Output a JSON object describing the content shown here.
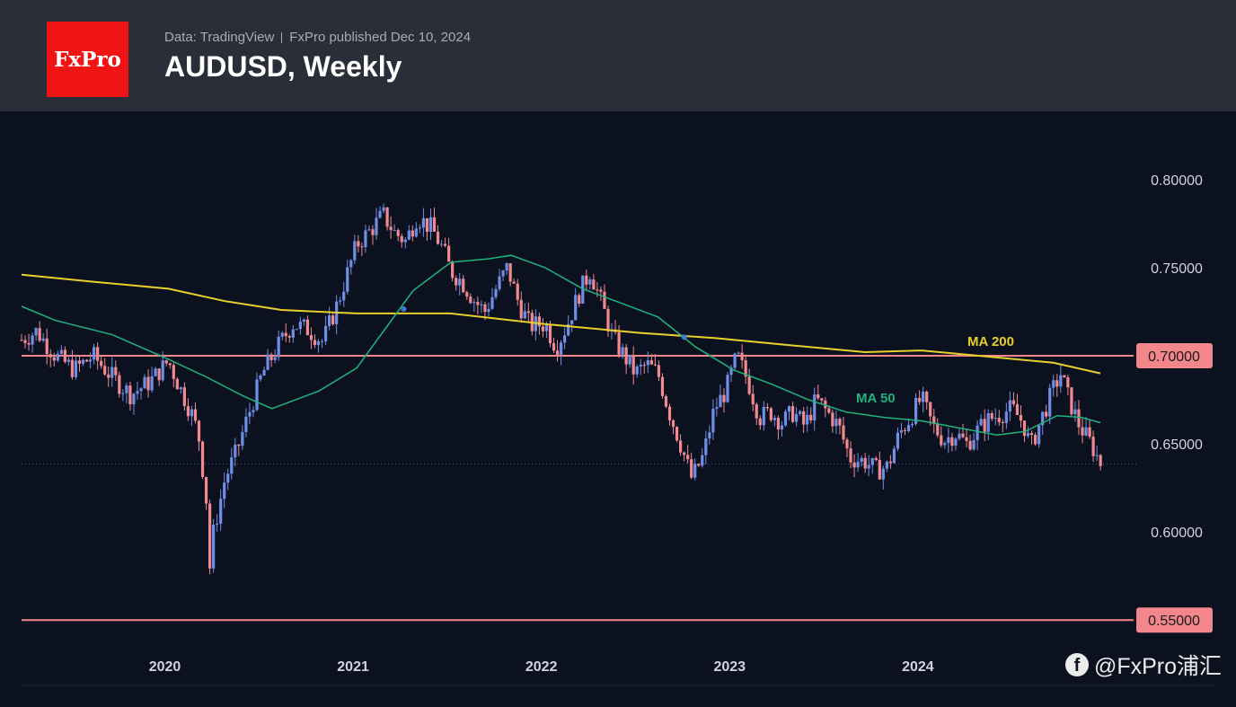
{
  "header": {
    "logo_text": "FxPro",
    "data_source": "Data: TradingView",
    "published": "FxPro published Dec 10, 2024",
    "title": "AUDUSD, Weekly"
  },
  "watermark": {
    "icon": "facebook-icon",
    "text": "@FxPro浦汇"
  },
  "colors": {
    "background": "#0c1120",
    "header": "#2a2e39",
    "up": "#6f8fe6",
    "down": "#f08a90",
    "ma50": "#1fb37d",
    "ma200": "#e8cf2c",
    "level": "#f2868a",
    "axis_text": "#d1d4dc"
  },
  "chart_data": {
    "type": "candlestick",
    "timeframe": "Weekly",
    "symbol": "AUDUSD",
    "x_range": [
      2019.22,
      2024.95
    ],
    "ylim": [
      0.545,
      0.805
    ],
    "y_ticks": [
      {
        "value": 0.8,
        "label": "0.80000"
      },
      {
        "value": 0.75,
        "label": "0.75000"
      },
      {
        "value": 0.7,
        "label": "0.70000"
      },
      {
        "value": 0.65,
        "label": "0.65000"
      },
      {
        "value": 0.6,
        "label": "0.60000"
      },
      {
        "value": 0.55,
        "label": "0.55000"
      }
    ],
    "x_ticks": [
      {
        "value": 2020.0,
        "label": "2020"
      },
      {
        "value": 2021.0,
        "label": "2021"
      },
      {
        "value": 2022.0,
        "label": "2022"
      },
      {
        "value": 2023.0,
        "label": "2023"
      },
      {
        "value": 2024.0,
        "label": "2024"
      }
    ],
    "levels": [
      {
        "value": 0.7,
        "label": "0.70000"
      },
      {
        "value": 0.55,
        "label": "0.55000"
      }
    ],
    "last_price": 0.6385,
    "ma_labels": {
      "ma50": "MA 50",
      "ma200": "MA 200"
    },
    "ma200": [
      [
        2019.22,
        0.746
      ],
      [
        2019.6,
        0.742
      ],
      [
        2020.0,
        0.738
      ],
      [
        2020.3,
        0.731
      ],
      [
        2020.6,
        0.726
      ],
      [
        2021.0,
        0.724
      ],
      [
        2021.5,
        0.724
      ],
      [
        2022.0,
        0.718
      ],
      [
        2022.5,
        0.713
      ],
      [
        2022.9,
        0.71
      ],
      [
        2023.3,
        0.706
      ],
      [
        2023.7,
        0.702
      ],
      [
        2024.0,
        0.703
      ],
      [
        2024.4,
        0.699
      ],
      [
        2024.7,
        0.696
      ],
      [
        2024.95,
        0.69
      ]
    ],
    "ma50": [
      [
        2019.22,
        0.728
      ],
      [
        2019.4,
        0.72
      ],
      [
        2019.7,
        0.712
      ],
      [
        2020.0,
        0.698
      ],
      [
        2020.2,
        0.688
      ],
      [
        2020.4,
        0.677
      ],
      [
        2020.55,
        0.67
      ],
      [
        2020.8,
        0.68
      ],
      [
        2021.0,
        0.693
      ],
      [
        2021.15,
        0.715
      ],
      [
        2021.3,
        0.737
      ],
      [
        2021.5,
        0.753
      ],
      [
        2021.7,
        0.755
      ],
      [
        2021.82,
        0.757
      ],
      [
        2022.0,
        0.75
      ],
      [
        2022.2,
        0.738
      ],
      [
        2022.4,
        0.73
      ],
      [
        2022.6,
        0.722
      ],
      [
        2022.8,
        0.705
      ],
      [
        2023.0,
        0.692
      ],
      [
        2023.2,
        0.684
      ],
      [
        2023.4,
        0.675
      ],
      [
        2023.6,
        0.668
      ],
      [
        2023.8,
        0.665
      ],
      [
        2024.0,
        0.663
      ],
      [
        2024.2,
        0.659
      ],
      [
        2024.4,
        0.655
      ],
      [
        2024.55,
        0.657
      ],
      [
        2024.72,
        0.666
      ],
      [
        2024.85,
        0.665
      ],
      [
        2024.95,
        0.662
      ]
    ],
    "price_path": [
      [
        2019.22,
        0.709
      ],
      [
        2019.3,
        0.714
      ],
      [
        2019.4,
        0.7
      ],
      [
        2019.5,
        0.692
      ],
      [
        2019.6,
        0.7
      ],
      [
        2019.7,
        0.688
      ],
      [
        2019.8,
        0.678
      ],
      [
        2019.9,
        0.685
      ],
      [
        2020.0,
        0.697
      ],
      [
        2020.06,
        0.682
      ],
      [
        2020.12,
        0.668
      ],
      [
        2020.16,
        0.655
      ],
      [
        2020.2,
        0.62
      ],
      [
        2020.22,
        0.58
      ],
      [
        2020.24,
        0.6
      ],
      [
        2020.3,
        0.63
      ],
      [
        2020.36,
        0.645
      ],
      [
        2020.42,
        0.665
      ],
      [
        2020.5,
        0.69
      ],
      [
        2020.58,
        0.705
      ],
      [
        2020.66,
        0.718
      ],
      [
        2020.74,
        0.715
      ],
      [
        2020.82,
        0.708
      ],
      [
        2020.9,
        0.73
      ],
      [
        2021.0,
        0.763
      ],
      [
        2021.08,
        0.772
      ],
      [
        2021.14,
        0.78
      ],
      [
        2021.2,
        0.77
      ],
      [
        2021.26,
        0.765
      ],
      [
        2021.32,
        0.779
      ],
      [
        2021.4,
        0.772
      ],
      [
        2021.46,
        0.76
      ],
      [
        2021.5,
        0.748
      ],
      [
        2021.56,
        0.742
      ],
      [
        2021.62,
        0.732
      ],
      [
        2021.68,
        0.725
      ],
      [
        2021.74,
        0.738
      ],
      [
        2021.8,
        0.75
      ],
      [
        2021.86,
        0.73
      ],
      [
        2021.92,
        0.717
      ],
      [
        2022.0,
        0.718
      ],
      [
        2022.06,
        0.705
      ],
      [
        2022.12,
        0.718
      ],
      [
        2022.18,
        0.735
      ],
      [
        2022.24,
        0.748
      ],
      [
        2022.3,
        0.73
      ],
      [
        2022.36,
        0.71
      ],
      [
        2022.42,
        0.7
      ],
      [
        2022.48,
        0.69
      ],
      [
        2022.54,
        0.695
      ],
      [
        2022.6,
        0.69
      ],
      [
        2022.66,
        0.668
      ],
      [
        2022.72,
        0.65
      ],
      [
        2022.78,
        0.63
      ],
      [
        2022.84,
        0.643
      ],
      [
        2022.9,
        0.67
      ],
      [
        2022.96,
        0.68
      ],
      [
        2023.02,
        0.7
      ],
      [
        2023.08,
        0.685
      ],
      [
        2023.14,
        0.665
      ],
      [
        2023.2,
        0.668
      ],
      [
        2023.26,
        0.662
      ],
      [
        2023.32,
        0.668
      ],
      [
        2023.38,
        0.66
      ],
      [
        2023.44,
        0.675
      ],
      [
        2023.5,
        0.668
      ],
      [
        2023.56,
        0.66
      ],
      [
        2023.62,
        0.642
      ],
      [
        2023.7,
        0.64
      ],
      [
        2023.76,
        0.635
      ],
      [
        2023.82,
        0.637
      ],
      [
        2023.88,
        0.655
      ],
      [
        2023.94,
        0.665
      ],
      [
        2024.0,
        0.676
      ],
      [
        2024.06,
        0.66
      ],
      [
        2024.12,
        0.652
      ],
      [
        2024.18,
        0.656
      ],
      [
        2024.24,
        0.65
      ],
      [
        2024.3,
        0.658
      ],
      [
        2024.36,
        0.664
      ],
      [
        2024.42,
        0.667
      ],
      [
        2024.48,
        0.67
      ],
      [
        2024.54,
        0.662
      ],
      [
        2024.58,
        0.648
      ],
      [
        2024.64,
        0.665
      ],
      [
        2024.7,
        0.681
      ],
      [
        2024.74,
        0.69
      ],
      [
        2024.78,
        0.676
      ],
      [
        2024.84,
        0.66
      ],
      [
        2024.9,
        0.65
      ],
      [
        2024.95,
        0.639
      ]
    ]
  }
}
